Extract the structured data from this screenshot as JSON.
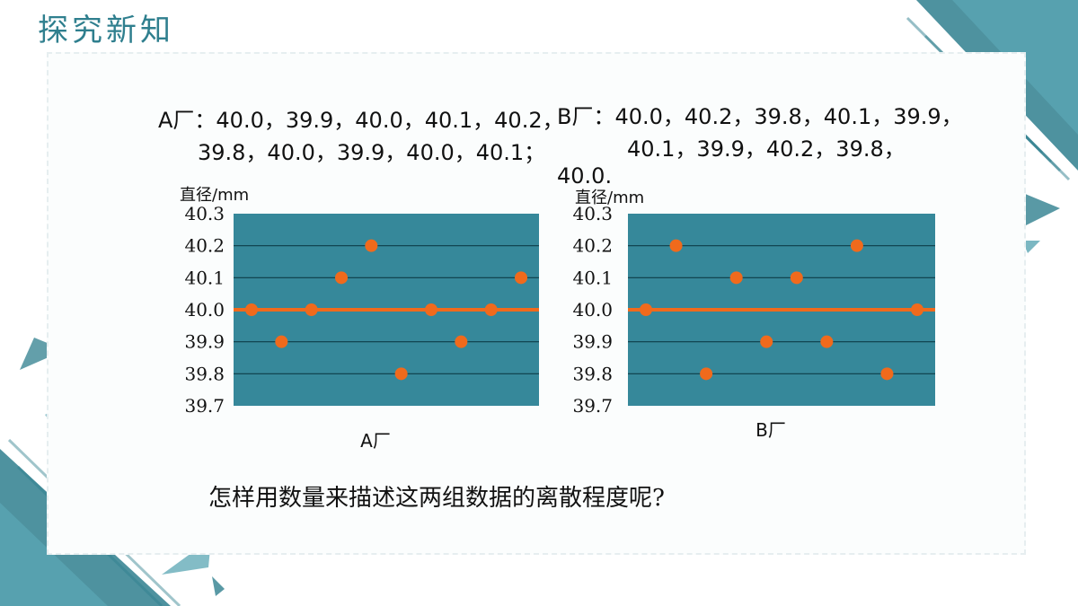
{
  "slide": {
    "title": "探究新知",
    "factory_a_text": [
      "A厂：40.0，39.9，40.0，40.1，40.2，",
      "39.8，40.0，39.9，40.0，40.1；"
    ],
    "factory_b_text": [
      "B厂：40.0，40.2，39.8，40.1，39.9，",
      "40.1，39.9，40.2，39.8，",
      "40.0."
    ],
    "question": "怎样用数量来描述这两组数据的离散程度呢?"
  },
  "colors": {
    "accent": "#2f7f8e",
    "plot_bg": "#36889a",
    "point": "#f06a1c",
    "mean_line": "#f06a1c",
    "gridline": "#0d3d47"
  },
  "chart_data": [
    {
      "type": "scatter",
      "xlabel": "A厂",
      "ylabel": "直径/mm",
      "ylim": [
        39.7,
        40.3
      ],
      "yticks": [
        "40.3",
        "40.2",
        "40.1",
        "40.0",
        "39.9",
        "39.8",
        "39.7"
      ],
      "mean_line": 40.0,
      "grid": true,
      "x": [
        1,
        2,
        3,
        4,
        5,
        6,
        7,
        8,
        9,
        10
      ],
      "values": [
        40.0,
        39.9,
        40.0,
        40.1,
        40.2,
        39.8,
        40.0,
        39.9,
        40.0,
        40.1
      ]
    },
    {
      "type": "scatter",
      "xlabel": "B厂",
      "ylabel": "直径/mm",
      "ylim": [
        39.7,
        40.3
      ],
      "yticks": [
        "40.3",
        "40.2",
        "40.1",
        "40.0",
        "39.9",
        "39.8",
        "39.7"
      ],
      "mean_line": 40.0,
      "grid": true,
      "x": [
        1,
        2,
        3,
        4,
        5,
        6,
        7,
        8,
        9,
        10
      ],
      "values": [
        40.0,
        40.2,
        39.8,
        40.1,
        39.9,
        40.1,
        39.9,
        40.2,
        39.8,
        40.0
      ]
    }
  ]
}
